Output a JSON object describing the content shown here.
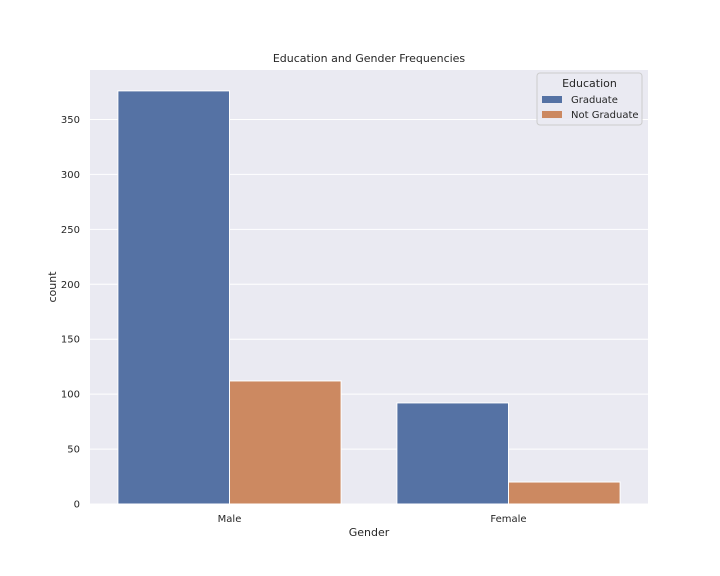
{
  "chart_data": {
    "type": "bar",
    "title": "Education and Gender Frequencies",
    "xlabel": "Gender",
    "ylabel": "count",
    "categories": [
      "Male",
      "Female"
    ],
    "series": [
      {
        "name": "Graduate",
        "values": [
          376,
          92
        ],
        "color": "#5572a4"
      },
      {
        "name": "Not Graduate",
        "values": [
          112,
          20
        ],
        "color": "#cc8961"
      }
    ],
    "ylim": [
      0,
      395
    ],
    "yticks": [
      0,
      50,
      100,
      150,
      200,
      250,
      300,
      350
    ],
    "grid": true,
    "legend": {
      "title": "Education",
      "placement": "top-right"
    },
    "colors": {
      "plot_background": "#eaeaf2",
      "grid": "#ffffff"
    }
  }
}
